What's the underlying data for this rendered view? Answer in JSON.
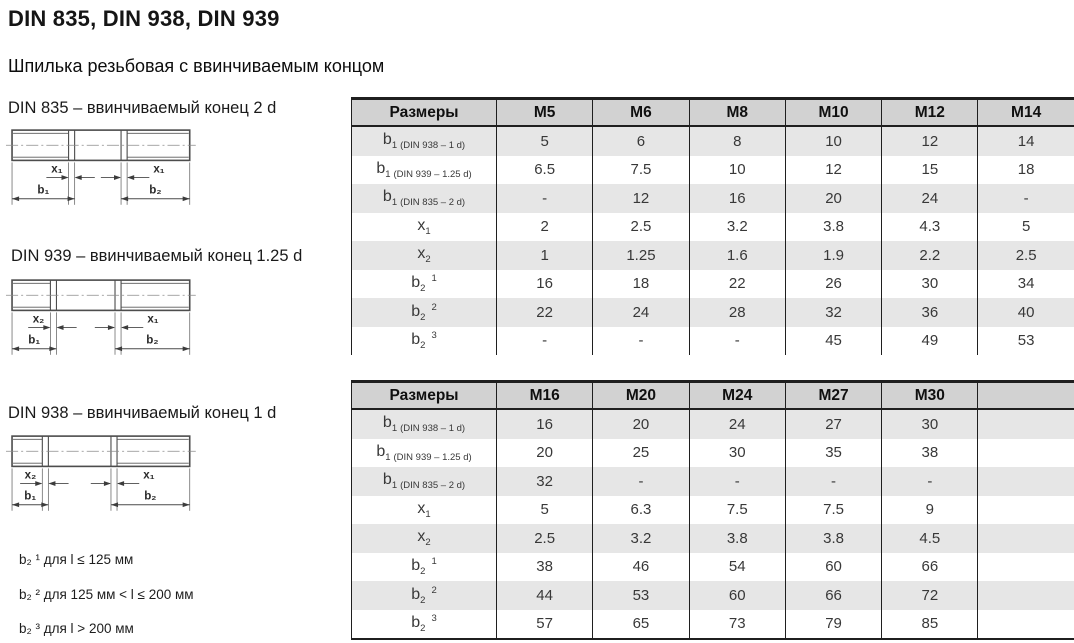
{
  "page": {
    "title": "DIN 835, DIN 938, DIN 939",
    "subtitle": "Шпилька резьбовая с ввинчиваемым концом"
  },
  "colors": {
    "border": "#1f1f1f",
    "header_bg": "#d2d2d2",
    "stripe_bg": "#e6e6e6",
    "value_text": "#383838"
  },
  "figures": [
    {
      "label": "DIN 835 – ввинчиваемый конец 2 d",
      "dims": {
        "left_x": "x₁",
        "left_b": "b₁",
        "right_x": "x₁",
        "right_b": "b₂"
      }
    },
    {
      "label": "DIN 939 – ввинчиваемый конец 1.25 d",
      "dims": {
        "left_x": "x₂",
        "left_b": "b₁",
        "right_x": "x₁",
        "right_b": "b₂"
      }
    },
    {
      "label": "DIN 938 – ввинчиваемый конец 1 d",
      "dims": {
        "left_x": "x₂",
        "left_b": "b₁",
        "right_x": "x₁",
        "right_b": "b₂"
      }
    }
  ],
  "footnotes": [
    "b₂ ¹ для l ≤ 125 мм",
    "b₂ ² для 125 мм < l ≤ 200 мм",
    "b₂ ³ для l > 200 мм"
  ],
  "tables": [
    {
      "headers": [
        "Размеры",
        "M5",
        "M6",
        "M8",
        "M10",
        "M12",
        "M14"
      ],
      "rows": [
        {
          "label": {
            "base": "b",
            "sub": "1",
            "note": "(DIN 938 – 1 d)"
          },
          "values": [
            "5",
            "6",
            "8",
            "10",
            "12",
            "14"
          ]
        },
        {
          "label": {
            "base": "b",
            "sub": "1",
            "note": "(DIN 939 – 1.25 d)"
          },
          "values": [
            "6.5",
            "7.5",
            "10",
            "12",
            "15",
            "18"
          ]
        },
        {
          "label": {
            "base": "b",
            "sub": "1",
            "note": "(DIN 835 – 2 d)"
          },
          "values": [
            "-",
            "12",
            "16",
            "20",
            "24",
            "-"
          ]
        },
        {
          "label": {
            "base": "x",
            "sub": "1"
          },
          "values": [
            "2",
            "2.5",
            "3.2",
            "3.8",
            "4.3",
            "5"
          ]
        },
        {
          "label": {
            "base": "x",
            "sub": "2"
          },
          "values": [
            "1",
            "1.25",
            "1.6",
            "1.9",
            "2.2",
            "2.5"
          ]
        },
        {
          "label": {
            "base": "b",
            "sub": "2",
            "sup": "1"
          },
          "values": [
            "16",
            "18",
            "22",
            "26",
            "30",
            "34"
          ]
        },
        {
          "label": {
            "base": "b",
            "sub": "2",
            "sup": "2"
          },
          "values": [
            "22",
            "24",
            "28",
            "32",
            "36",
            "40"
          ]
        },
        {
          "label": {
            "base": "b",
            "sub": "2",
            "sup": "3"
          },
          "values": [
            "-",
            "-",
            "-",
            "45",
            "49",
            "53"
          ]
        }
      ]
    },
    {
      "headers": [
        "Размеры",
        "M16",
        "M20",
        "M24",
        "M27",
        "M30",
        ""
      ],
      "rows": [
        {
          "label": {
            "base": "b",
            "sub": "1",
            "note": "(DIN 938 – 1 d)"
          },
          "values": [
            "16",
            "20",
            "24",
            "27",
            "30",
            ""
          ]
        },
        {
          "label": {
            "base": "b",
            "sub": "1",
            "note": "(DIN 939 – 1.25 d)"
          },
          "values": [
            "20",
            "25",
            "30",
            "35",
            "38",
            ""
          ]
        },
        {
          "label": {
            "base": "b",
            "sub": "1",
            "note": "(DIN 835 – 2 d)"
          },
          "values": [
            "32",
            "-",
            "-",
            "-",
            "-",
            ""
          ]
        },
        {
          "label": {
            "base": "x",
            "sub": "1"
          },
          "values": [
            "5",
            "6.3",
            "7.5",
            "7.5",
            "9",
            ""
          ]
        },
        {
          "label": {
            "base": "x",
            "sub": "2"
          },
          "values": [
            "2.5",
            "3.2",
            "3.8",
            "3.8",
            "4.5",
            ""
          ]
        },
        {
          "label": {
            "base": "b",
            "sub": "2",
            "sup": "1"
          },
          "values": [
            "38",
            "46",
            "54",
            "60",
            "66",
            ""
          ]
        },
        {
          "label": {
            "base": "b",
            "sub": "2",
            "sup": "2"
          },
          "values": [
            "44",
            "53",
            "60",
            "66",
            "72",
            ""
          ]
        },
        {
          "label": {
            "base": "b",
            "sub": "2",
            "sup": "3"
          },
          "values": [
            "57",
            "65",
            "73",
            "79",
            "85",
            ""
          ]
        }
      ]
    }
  ]
}
